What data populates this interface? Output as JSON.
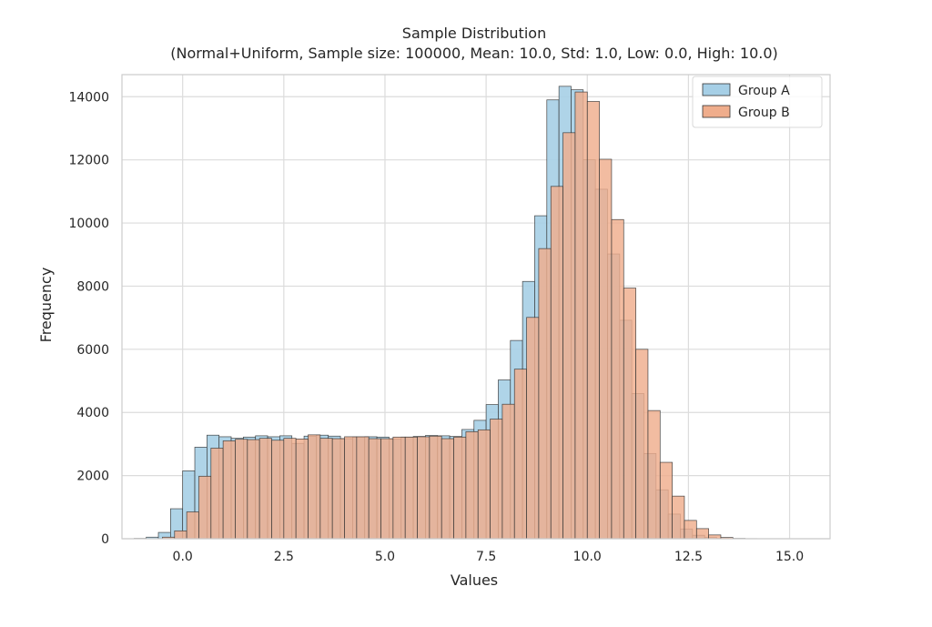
{
  "chart_data": {
    "type": "bar",
    "title": "Sample Distribution",
    "subtitle": "(Normal+Uniform, Sample size: 100000, Mean: 10.0, Std: 1.0, Low: 0.0, High: 10.0)",
    "xlabel": "Values",
    "ylabel": "Frequency",
    "xlim": [
      -1.5,
      16.0
    ],
    "ylim": [
      0,
      14700
    ],
    "xticks": [
      0.0,
      2.5,
      5.0,
      7.5,
      10.0,
      12.5,
      15.0
    ],
    "xtick_labels": [
      "0.0",
      "2.5",
      "5.0",
      "7.5",
      "10.0",
      "12.5",
      "15.0"
    ],
    "yticks": [
      0,
      2000,
      4000,
      6000,
      8000,
      10000,
      12000,
      14000
    ],
    "ytick_labels": [
      "0",
      "2000",
      "4000",
      "6000",
      "8000",
      "10000",
      "12000",
      "14000"
    ],
    "grid": true,
    "legend_position": "top-right",
    "bin_width": 0.3,
    "series": [
      {
        "name": "Group A",
        "color": "#a6cfe6",
        "bin_starts": [
          -1.2,
          -0.9,
          -0.6,
          -0.3,
          0.0,
          0.3,
          0.6,
          0.9,
          1.2,
          1.5,
          1.8,
          2.1,
          2.4,
          2.7,
          3.0,
          3.3,
          3.6,
          3.9,
          4.2,
          4.5,
          4.8,
          5.1,
          5.4,
          5.7,
          6.0,
          6.3,
          6.6,
          6.9,
          7.2,
          7.5,
          7.8,
          8.1,
          8.4,
          8.7,
          9.0,
          9.3,
          9.6,
          9.9,
          10.2,
          10.5,
          10.8,
          11.1,
          11.4,
          11.7,
          12.0,
          12.3,
          12.6,
          12.9,
          13.2
        ],
        "values": [
          10,
          50,
          200,
          950,
          2150,
          2900,
          3280,
          3230,
          3180,
          3220,
          3260,
          3230,
          3260,
          3020,
          3250,
          3280,
          3250,
          3170,
          3220,
          3230,
          3220,
          3150,
          3220,
          3240,
          3270,
          3260,
          3240,
          3460,
          3750,
          4250,
          5030,
          6280,
          8150,
          10230,
          13900,
          14330,
          14220,
          12000,
          11070,
          9020,
          6920,
          4600,
          2700,
          1550,
          780,
          310,
          110,
          40,
          10
        ]
      },
      {
        "name": "Group B",
        "color": "#efad8c",
        "bin_starts": [
          -0.5,
          -0.2,
          0.1,
          0.4,
          0.7,
          1.0,
          1.3,
          1.6,
          1.9,
          2.2,
          2.5,
          2.8,
          3.1,
          3.4,
          3.7,
          4.0,
          4.3,
          4.6,
          4.9,
          5.2,
          5.5,
          5.8,
          6.1,
          6.4,
          6.7,
          7.0,
          7.3,
          7.6,
          7.9,
          8.2,
          8.5,
          8.8,
          9.1,
          9.4,
          9.7,
          10.0,
          10.3,
          10.6,
          10.9,
          11.2,
          11.5,
          11.8,
          12.1,
          12.4,
          12.7,
          13.0,
          13.3,
          13.6,
          13.9
        ],
        "values": [
          50,
          250,
          850,
          1980,
          2870,
          3100,
          3150,
          3140,
          3180,
          3120,
          3180,
          3160,
          3290,
          3180,
          3170,
          3230,
          3230,
          3170,
          3170,
          3220,
          3220,
          3230,
          3250,
          3170,
          3220,
          3390,
          3450,
          3790,
          4260,
          5370,
          7010,
          9190,
          11160,
          12860,
          14150,
          13850,
          12020,
          10110,
          7940,
          6000,
          4060,
          2420,
          1350,
          580,
          320,
          120,
          40,
          10,
          5
        ]
      }
    ]
  }
}
